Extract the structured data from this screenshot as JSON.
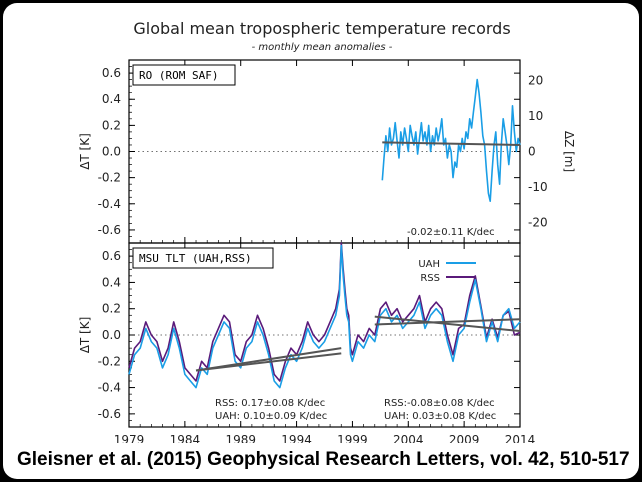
{
  "citation": "Gleisner et al. (2015) Geophysical Research Letters, vol. 42, 510-517",
  "colors": {
    "uah": "#1a9ee6",
    "rss": "#5a1a7a",
    "trend": "#555555",
    "axis": "#000000"
  },
  "chart_data": [
    {
      "type": "line",
      "title": "Global mean tropospheric temperature records",
      "subtitle": "- monthly mean anomalies -",
      "panel_label": "RO (ROM SAF)",
      "ylabel": "ΔT [K]",
      "ylabel_right": "ΔZ [m]",
      "xlim": [
        1979,
        2014
      ],
      "ylim": [
        -0.7,
        0.7
      ],
      "ylim_right": [
        -25.7,
        25.7
      ],
      "yticks": [
        -0.6,
        -0.4,
        -0.2,
        0.0,
        0.2,
        0.4,
        0.6
      ],
      "yticks_right": [
        -20,
        -10,
        0,
        10,
        20
      ],
      "zero_line": "dotted",
      "annotations": [
        "-0.02±0.11 K/dec"
      ],
      "series": [
        {
          "color_key": "uah",
          "x": [
            2001.67,
            2001.83,
            2002.0,
            2002.17,
            2002.33,
            2002.5,
            2002.67,
            2002.83,
            2003.0,
            2003.17,
            2003.33,
            2003.5,
            2003.67,
            2003.83,
            2004.0,
            2004.17,
            2004.33,
            2004.5,
            2004.67,
            2004.83,
            2005.0,
            2005.17,
            2005.33,
            2005.5,
            2005.67,
            2005.83,
            2006.0,
            2006.17,
            2006.33,
            2006.5,
            2006.67,
            2006.83,
            2007.0,
            2007.17,
            2007.33,
            2007.5,
            2007.67,
            2007.83,
            2008.0,
            2008.17,
            2008.33,
            2008.5,
            2008.67,
            2008.83,
            2009.0,
            2009.17,
            2009.33,
            2009.5,
            2009.67,
            2009.83,
            2010.0,
            2010.17,
            2010.33,
            2010.5,
            2010.67,
            2010.83,
            2011.0,
            2011.17,
            2011.33,
            2011.5,
            2011.67,
            2011.83,
            2012.0,
            2012.17,
            2012.33,
            2012.5,
            2012.67,
            2012.83,
            2013.0,
            2013.17,
            2013.33,
            2013.5,
            2013.67,
            2013.83,
            2014.0
          ],
          "y": [
            -0.22,
            -0.05,
            0.12,
            0.0,
            0.18,
            0.05,
            0.1,
            0.22,
            0.08,
            -0.05,
            0.15,
            0.05,
            0.18,
            0.1,
            0.0,
            0.2,
            0.12,
            0.05,
            0.15,
            -0.02,
            0.1,
            0.22,
            0.08,
            0.15,
            0.05,
            0.2,
            0.0,
            0.12,
            0.05,
            0.18,
            0.08,
            0.15,
            0.25,
            0.05,
            0.1,
            -0.05,
            0.05,
            0.0,
            -0.2,
            -0.08,
            -0.12,
            0.05,
            0.0,
            0.1,
            0.02,
            0.15,
            0.1,
            0.25,
            0.18,
            0.3,
            0.42,
            0.55,
            0.45,
            0.3,
            0.12,
            0.05,
            -0.15,
            -0.32,
            -0.38,
            -0.15,
            0.05,
            0.15,
            -0.1,
            -0.25,
            0.05,
            0.25,
            0.15,
            0.05,
            -0.1,
            0.05,
            0.35,
            0.15,
            0.0,
            0.1,
            0.05
          ]
        }
      ],
      "trend_lines": [
        {
          "x": [
            2001.67,
            2014.0
          ],
          "y": [
            0.07,
            0.05
          ]
        }
      ]
    },
    {
      "type": "line",
      "panel_label": "MSU TLT (UAH,RSS)",
      "ylabel": "ΔT [K]",
      "xlabel": "",
      "xlim": [
        1979,
        2014
      ],
      "xticks": [
        1979,
        1984,
        1989,
        1994,
        1999,
        2004,
        2009,
        2014
      ],
      "ylim": [
        -0.7,
        0.7
      ],
      "yticks": [
        -0.6,
        -0.4,
        -0.2,
        0.0,
        0.2,
        0.4,
        0.6
      ],
      "zero_line": "dotted",
      "legend": [
        "UAH",
        "RSS"
      ],
      "legend_position": "top-right",
      "annotations": [
        "RSS: 0.17±0.08 K/dec",
        "UAH: 0.10±0.09 K/dec",
        "RSS:-0.08±0.08 K/dec",
        "UAH: 0.03±0.08 K/dec"
      ],
      "series": [
        {
          "name": "UAH",
          "color_key": "uah",
          "x": [
            1979.0,
            1979.5,
            1980.0,
            1980.5,
            1981.0,
            1981.5,
            1982.0,
            1982.5,
            1983.0,
            1983.5,
            1984.0,
            1984.5,
            1985.0,
            1985.5,
            1986.0,
            1986.5,
            1987.0,
            1987.5,
            1988.0,
            1988.5,
            1989.0,
            1989.5,
            1990.0,
            1990.5,
            1991.0,
            1991.5,
            1992.0,
            1992.5,
            1993.0,
            1993.5,
            1994.0,
            1994.5,
            1995.0,
            1995.5,
            1996.0,
            1996.5,
            1997.0,
            1997.5,
            1997.83,
            1998.0,
            1998.17,
            1998.33,
            1998.5,
            1998.67,
            1998.83,
            1999.0,
            1999.5,
            2000.0,
            2000.5,
            2001.0,
            2001.5,
            2002.0,
            2002.5,
            2003.0,
            2003.5,
            2004.0,
            2004.5,
            2005.0,
            2005.5,
            2006.0,
            2006.5,
            2007.0,
            2007.5,
            2008.0,
            2008.5,
            2009.0,
            2009.5,
            2010.0,
            2010.5,
            2011.0,
            2011.5,
            2012.0,
            2012.5,
            2013.0,
            2013.5,
            2014.0
          ],
          "y": [
            -0.3,
            -0.15,
            -0.1,
            0.05,
            -0.05,
            -0.1,
            -0.25,
            -0.15,
            0.05,
            -0.1,
            -0.3,
            -0.35,
            -0.4,
            -0.25,
            -0.3,
            -0.1,
            0.0,
            0.1,
            0.05,
            -0.2,
            -0.25,
            -0.1,
            -0.05,
            0.1,
            0.0,
            -0.15,
            -0.35,
            -0.4,
            -0.25,
            -0.15,
            -0.2,
            -0.1,
            0.05,
            -0.05,
            -0.1,
            -0.05,
            0.05,
            0.15,
            0.3,
            0.68,
            0.45,
            0.3,
            0.15,
            0.1,
            -0.15,
            -0.2,
            -0.05,
            -0.1,
            0.0,
            -0.05,
            0.15,
            0.2,
            0.1,
            0.15,
            0.05,
            0.1,
            0.15,
            0.25,
            0.05,
            0.15,
            0.2,
            0.15,
            -0.05,
            -0.2,
            0.0,
            0.05,
            0.25,
            0.42,
            0.2,
            -0.05,
            0.1,
            -0.05,
            0.15,
            0.2,
            0.05,
            0.1
          ]
        },
        {
          "name": "RSS",
          "color_key": "rss",
          "x": [
            1979.0,
            1979.5,
            1980.0,
            1980.5,
            1981.0,
            1981.5,
            1982.0,
            1982.5,
            1983.0,
            1983.5,
            1984.0,
            1984.5,
            1985.0,
            1985.5,
            1986.0,
            1986.5,
            1987.0,
            1987.5,
            1988.0,
            1988.5,
            1989.0,
            1989.5,
            1990.0,
            1990.5,
            1991.0,
            1991.5,
            1992.0,
            1992.5,
            1993.0,
            1993.5,
            1994.0,
            1994.5,
            1995.0,
            1995.5,
            1996.0,
            1996.5,
            1997.0,
            1997.5,
            1997.83,
            1998.0,
            1998.17,
            1998.33,
            1998.5,
            1998.67,
            1998.83,
            1999.0,
            1999.5,
            2000.0,
            2000.5,
            2001.0,
            2001.5,
            2002.0,
            2002.5,
            2003.0,
            2003.5,
            2004.0,
            2004.5,
            2005.0,
            2005.5,
            2006.0,
            2006.5,
            2007.0,
            2007.5,
            2008.0,
            2008.5,
            2009.0,
            2009.5,
            2010.0,
            2010.5,
            2011.0,
            2011.5,
            2012.0,
            2012.5,
            2013.0,
            2013.5,
            2014.0
          ],
          "y": [
            -0.25,
            -0.1,
            -0.05,
            0.1,
            0.0,
            -0.05,
            -0.2,
            -0.1,
            0.1,
            -0.05,
            -0.25,
            -0.3,
            -0.35,
            -0.2,
            -0.25,
            -0.05,
            0.05,
            0.15,
            0.1,
            -0.15,
            -0.2,
            -0.05,
            0.0,
            0.15,
            0.05,
            -0.1,
            -0.3,
            -0.35,
            -0.2,
            -0.1,
            -0.15,
            -0.05,
            0.1,
            0.0,
            -0.05,
            0.0,
            0.1,
            0.2,
            0.35,
            0.7,
            0.5,
            0.35,
            0.2,
            0.15,
            -0.1,
            -0.15,
            0.0,
            -0.05,
            0.05,
            0.0,
            0.2,
            0.25,
            0.15,
            0.2,
            0.1,
            0.15,
            0.2,
            0.3,
            0.1,
            0.2,
            0.25,
            0.2,
            0.0,
            -0.15,
            0.05,
            0.08,
            0.3,
            0.45,
            0.22,
            -0.02,
            0.12,
            -0.02,
            0.15,
            0.18,
            0.0,
            0.02
          ]
        }
      ],
      "trend_lines": [
        {
          "x": [
            1985.0,
            1998.0
          ],
          "y": [
            -0.27,
            -0.1
          ]
        },
        {
          "x": [
            1985.0,
            1998.0
          ],
          "y": [
            -0.27,
            -0.14
          ]
        },
        {
          "x": [
            2001.0,
            2014.0
          ],
          "y": [
            0.14,
            0.03
          ]
        },
        {
          "x": [
            2001.0,
            2014.0
          ],
          "y": [
            0.08,
            0.12
          ]
        }
      ]
    }
  ]
}
